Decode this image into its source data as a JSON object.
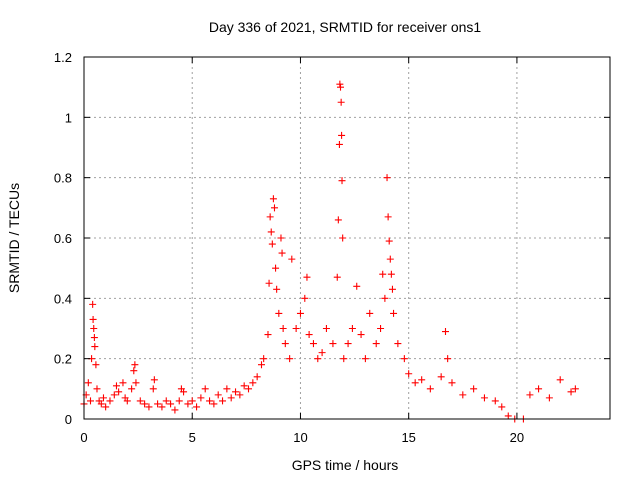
{
  "chart_data": {
    "type": "scatter",
    "title": "Day 336 of 2021, SRMTID for receiver ons1",
    "xlabel": "GPS time / hours",
    "ylabel": "SRMTID / TECUs",
    "xlim": [
      0,
      24.3
    ],
    "ylim": [
      0,
      1.2
    ],
    "xticks": [
      0,
      5,
      10,
      15,
      20
    ],
    "xtick_labels": [
      "0",
      "5",
      "10",
      "15",
      "20"
    ],
    "yticks": [
      0,
      0.2,
      0.4,
      0.6,
      0.8,
      1,
      1.2
    ],
    "ytick_labels": [
      "0",
      "0.2",
      "0.4",
      "0.6",
      "0.8",
      "1",
      "1.2"
    ],
    "grid": true,
    "marker": "+",
    "series": [
      {
        "name": "SRMTID",
        "color": "#ff0000",
        "description": "noisy scatter; baseline ~0.05-0.1 TECU, storm activity 8.5-16.5 h",
        "points": [
          [
            0.0,
            0.05
          ],
          [
            0.1,
            0.08
          ],
          [
            0.2,
            0.12
          ],
          [
            0.3,
            0.06
          ],
          [
            0.35,
            0.2
          ],
          [
            0.4,
            0.38
          ],
          [
            0.42,
            0.33
          ],
          [
            0.45,
            0.3
          ],
          [
            0.48,
            0.27
          ],
          [
            0.5,
            0.24
          ],
          [
            0.55,
            0.18
          ],
          [
            0.6,
            0.1
          ],
          [
            0.7,
            0.06
          ],
          [
            0.8,
            0.05
          ],
          [
            0.9,
            0.07
          ],
          [
            1.0,
            0.04
          ],
          [
            1.2,
            0.06
          ],
          [
            1.4,
            0.08
          ],
          [
            1.5,
            0.11
          ],
          [
            1.6,
            0.09
          ],
          [
            1.8,
            0.12
          ],
          [
            1.9,
            0.07
          ],
          [
            2.0,
            0.06
          ],
          [
            2.2,
            0.1
          ],
          [
            2.3,
            0.16
          ],
          [
            2.35,
            0.18
          ],
          [
            2.4,
            0.12
          ],
          [
            2.6,
            0.06
          ],
          [
            2.8,
            0.05
          ],
          [
            3.0,
            0.04
          ],
          [
            3.2,
            0.1
          ],
          [
            3.25,
            0.13
          ],
          [
            3.4,
            0.05
          ],
          [
            3.6,
            0.04
          ],
          [
            3.8,
            0.06
          ],
          [
            4.0,
            0.05
          ],
          [
            4.2,
            0.03
          ],
          [
            4.4,
            0.06
          ],
          [
            4.5,
            0.1
          ],
          [
            4.6,
            0.09
          ],
          [
            4.8,
            0.05
          ],
          [
            5.0,
            0.06
          ],
          [
            5.2,
            0.04
          ],
          [
            5.4,
            0.07
          ],
          [
            5.6,
            0.1
          ],
          [
            5.8,
            0.06
          ],
          [
            6.0,
            0.05
          ],
          [
            6.2,
            0.08
          ],
          [
            6.4,
            0.06
          ],
          [
            6.6,
            0.1
          ],
          [
            6.8,
            0.07
          ],
          [
            7.0,
            0.09
          ],
          [
            7.2,
            0.08
          ],
          [
            7.4,
            0.11
          ],
          [
            7.6,
            0.1
          ],
          [
            7.8,
            0.12
          ],
          [
            8.0,
            0.14
          ],
          [
            8.2,
            0.18
          ],
          [
            8.3,
            0.2
          ],
          [
            8.5,
            0.28
          ],
          [
            8.55,
            0.45
          ],
          [
            8.6,
            0.67
          ],
          [
            8.65,
            0.62
          ],
          [
            8.7,
            0.58
          ],
          [
            8.75,
            0.73
          ],
          [
            8.8,
            0.7
          ],
          [
            8.85,
            0.5
          ],
          [
            8.9,
            0.43
          ],
          [
            9.0,
            0.35
          ],
          [
            9.1,
            0.6
          ],
          [
            9.15,
            0.55
          ],
          [
            9.2,
            0.3
          ],
          [
            9.3,
            0.25
          ],
          [
            9.5,
            0.2
          ],
          [
            9.6,
            0.53
          ],
          [
            9.8,
            0.3
          ],
          [
            10.0,
            0.35
          ],
          [
            10.2,
            0.4
          ],
          [
            10.3,
            0.47
          ],
          [
            10.4,
            0.28
          ],
          [
            10.6,
            0.25
          ],
          [
            10.8,
            0.2
          ],
          [
            11.0,
            0.22
          ],
          [
            11.2,
            0.3
          ],
          [
            11.5,
            0.25
          ],
          [
            11.7,
            0.47
          ],
          [
            11.75,
            0.66
          ],
          [
            11.8,
            0.91
          ],
          [
            11.82,
            1.11
          ],
          [
            11.85,
            1.1
          ],
          [
            11.88,
            1.05
          ],
          [
            11.9,
            0.94
          ],
          [
            11.92,
            0.79
          ],
          [
            11.95,
            0.6
          ],
          [
            12.0,
            0.2
          ],
          [
            12.2,
            0.25
          ],
          [
            12.4,
            0.3
          ],
          [
            12.6,
            0.44
          ],
          [
            12.8,
            0.28
          ],
          [
            13.0,
            0.2
          ],
          [
            13.2,
            0.35
          ],
          [
            13.5,
            0.25
          ],
          [
            13.7,
            0.3
          ],
          [
            13.8,
            0.48
          ],
          [
            13.9,
            0.4
          ],
          [
            14.0,
            0.8
          ],
          [
            14.05,
            0.67
          ],
          [
            14.1,
            0.59
          ],
          [
            14.15,
            0.53
          ],
          [
            14.2,
            0.48
          ],
          [
            14.25,
            0.43
          ],
          [
            14.3,
            0.35
          ],
          [
            14.5,
            0.25
          ],
          [
            14.8,
            0.2
          ],
          [
            15.0,
            0.15
          ],
          [
            15.3,
            0.12
          ],
          [
            15.6,
            0.13
          ],
          [
            16.0,
            0.1
          ],
          [
            16.5,
            0.14
          ],
          [
            16.7,
            0.29
          ],
          [
            16.8,
            0.2
          ],
          [
            17.0,
            0.12
          ],
          [
            17.5,
            0.08
          ],
          [
            18.0,
            0.1
          ],
          [
            18.5,
            0.07
          ],
          [
            19.0,
            0.06
          ],
          [
            19.3,
            0.04
          ],
          [
            19.6,
            0.01
          ],
          [
            19.9,
            0.0
          ],
          [
            20.3,
            0.0
          ],
          [
            20.6,
            0.08
          ],
          [
            21.0,
            0.1
          ],
          [
            21.5,
            0.07
          ],
          [
            22.0,
            0.13
          ],
          [
            22.5,
            0.09
          ],
          [
            22.7,
            0.1
          ]
        ]
      }
    ]
  }
}
